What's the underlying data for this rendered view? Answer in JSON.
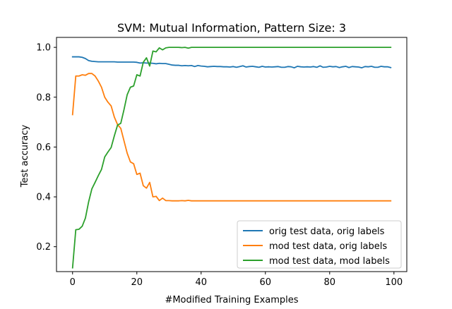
{
  "chart_data": {
    "type": "line",
    "title": "SVM: Mutual Information, Pattern Size: 3",
    "xlabel": "#Modified Training Examples",
    "ylabel": "Test accuracy",
    "xlim": [
      -5,
      104
    ],
    "ylim": [
      0.1,
      1.04
    ],
    "xticks": [
      0,
      20,
      40,
      60,
      80,
      100
    ],
    "yticks": [
      0.2,
      0.4,
      0.6,
      0.8,
      1.0
    ],
    "xtick_labels": [
      "0",
      "20",
      "40",
      "60",
      "80",
      "100"
    ],
    "ytick_labels": [
      "0.2",
      "0.4",
      "0.6",
      "0.8",
      "1.0"
    ],
    "grid": false,
    "legend_position": "lower-right",
    "series": [
      {
        "name": "orig test data, orig labels",
        "color": "#1f77b4",
        "points": [
          [
            0,
            0.962
          ],
          [
            1,
            0.962
          ],
          [
            2,
            0.962
          ],
          [
            3,
            0.96
          ],
          [
            4,
            0.955
          ],
          [
            5,
            0.947
          ],
          [
            6,
            0.944
          ],
          [
            7,
            0.943
          ],
          [
            8,
            0.942
          ],
          [
            9,
            0.942
          ],
          [
            10,
            0.942
          ],
          [
            11,
            0.942
          ],
          [
            12,
            0.942
          ],
          [
            13,
            0.942
          ],
          [
            14,
            0.941
          ],
          [
            15,
            0.941
          ],
          [
            16,
            0.941
          ],
          [
            17,
            0.941
          ],
          [
            18,
            0.941
          ],
          [
            19,
            0.941
          ],
          [
            20,
            0.94
          ],
          [
            21,
            0.937
          ],
          [
            22,
            0.938
          ],
          [
            23,
            0.937
          ],
          [
            24,
            0.937
          ],
          [
            25,
            0.936
          ],
          [
            26,
            0.934
          ],
          [
            27,
            0.936
          ],
          [
            28,
            0.935
          ],
          [
            29,
            0.935
          ],
          [
            30,
            0.932
          ],
          [
            31,
            0.929
          ],
          [
            32,
            0.928
          ],
          [
            33,
            0.928
          ],
          [
            34,
            0.926
          ],
          [
            35,
            0.927
          ],
          [
            36,
            0.926
          ],
          [
            37,
            0.927
          ],
          [
            38,
            0.923
          ],
          [
            39,
            0.927
          ],
          [
            40,
            0.925
          ],
          [
            41,
            0.924
          ],
          [
            42,
            0.922
          ],
          [
            43,
            0.923
          ],
          [
            44,
            0.924
          ],
          [
            45,
            0.923
          ],
          [
            46,
            0.923
          ],
          [
            47,
            0.922
          ],
          [
            48,
            0.922
          ],
          [
            49,
            0.921
          ],
          [
            50,
            0.923
          ],
          [
            51,
            0.92
          ],
          [
            52,
            0.923
          ],
          [
            53,
            0.926
          ],
          [
            54,
            0.921
          ],
          [
            55,
            0.923
          ],
          [
            56,
            0.924
          ],
          [
            57,
            0.922
          ],
          [
            58,
            0.92
          ],
          [
            59,
            0.924
          ],
          [
            60,
            0.921
          ],
          [
            61,
            0.922
          ],
          [
            62,
            0.921
          ],
          [
            63,
            0.922
          ],
          [
            64,
            0.923
          ],
          [
            65,
            0.92
          ],
          [
            66,
            0.92
          ],
          [
            67,
            0.923
          ],
          [
            68,
            0.922
          ],
          [
            69,
            0.918
          ],
          [
            70,
            0.924
          ],
          [
            71,
            0.922
          ],
          [
            72,
            0.921
          ],
          [
            73,
            0.922
          ],
          [
            74,
            0.921
          ],
          [
            75,
            0.923
          ],
          [
            76,
            0.92
          ],
          [
            77,
            0.926
          ],
          [
            78,
            0.92
          ],
          [
            79,
            0.921
          ],
          [
            80,
            0.924
          ],
          [
            81,
            0.922
          ],
          [
            82,
            0.923
          ],
          [
            83,
            0.919
          ],
          [
            84,
            0.922
          ],
          [
            85,
            0.924
          ],
          [
            86,
            0.919
          ],
          [
            87,
            0.923
          ],
          [
            88,
            0.922
          ],
          [
            89,
            0.921
          ],
          [
            90,
            0.918
          ],
          [
            91,
            0.923
          ],
          [
            92,
            0.922
          ],
          [
            93,
            0.924
          ],
          [
            94,
            0.92
          ],
          [
            95,
            0.92
          ],
          [
            96,
            0.924
          ],
          [
            97,
            0.922
          ],
          [
            98,
            0.922
          ],
          [
            99,
            0.919
          ]
        ]
      },
      {
        "name": "mod test data, orig labels",
        "color": "#ff7f0e",
        "points": [
          [
            0,
            0.73
          ],
          [
            1,
            0.885
          ],
          [
            2,
            0.885
          ],
          [
            3,
            0.89
          ],
          [
            4,
            0.888
          ],
          [
            5,
            0.895
          ],
          [
            6,
            0.895
          ],
          [
            7,
            0.885
          ],
          [
            8,
            0.865
          ],
          [
            9,
            0.84
          ],
          [
            10,
            0.8
          ],
          [
            11,
            0.78
          ],
          [
            12,
            0.765
          ],
          [
            13,
            0.72
          ],
          [
            14,
            0.69
          ],
          [
            15,
            0.675
          ],
          [
            16,
            0.625
          ],
          [
            17,
            0.575
          ],
          [
            18,
            0.54
          ],
          [
            19,
            0.533
          ],
          [
            20,
            0.49
          ],
          [
            21,
            0.495
          ],
          [
            22,
            0.445
          ],
          [
            23,
            0.435
          ],
          [
            24,
            0.458
          ],
          [
            25,
            0.4
          ],
          [
            26,
            0.402
          ],
          [
            27,
            0.385
          ],
          [
            28,
            0.395
          ],
          [
            29,
            0.385
          ],
          [
            30,
            0.385
          ],
          [
            31,
            0.384
          ],
          [
            32,
            0.384
          ],
          [
            33,
            0.384
          ],
          [
            34,
            0.385
          ],
          [
            35,
            0.384
          ],
          [
            36,
            0.386
          ],
          [
            37,
            0.384
          ],
          [
            38,
            0.384
          ],
          [
            39,
            0.384
          ],
          [
            40,
            0.384
          ],
          [
            45,
            0.384
          ],
          [
            50,
            0.384
          ],
          [
            55,
            0.384
          ],
          [
            60,
            0.384
          ],
          [
            65,
            0.384
          ],
          [
            70,
            0.384
          ],
          [
            75,
            0.384
          ],
          [
            80,
            0.384
          ],
          [
            85,
            0.384
          ],
          [
            90,
            0.384
          ],
          [
            95,
            0.384
          ],
          [
            99,
            0.384
          ]
        ]
      },
      {
        "name": "mod test data, mod labels",
        "color": "#2ca02c",
        "points": [
          [
            0,
            0.115
          ],
          [
            1,
            0.268
          ],
          [
            2,
            0.27
          ],
          [
            3,
            0.282
          ],
          [
            4,
            0.315
          ],
          [
            5,
            0.38
          ],
          [
            6,
            0.432
          ],
          [
            7,
            0.458
          ],
          [
            8,
            0.485
          ],
          [
            9,
            0.51
          ],
          [
            10,
            0.56
          ],
          [
            11,
            0.58
          ],
          [
            12,
            0.598
          ],
          [
            13,
            0.645
          ],
          [
            14,
            0.688
          ],
          [
            15,
            0.695
          ],
          [
            16,
            0.75
          ],
          [
            17,
            0.81
          ],
          [
            18,
            0.84
          ],
          [
            19,
            0.845
          ],
          [
            20,
            0.89
          ],
          [
            21,
            0.885
          ],
          [
            22,
            0.94
          ],
          [
            23,
            0.958
          ],
          [
            24,
            0.925
          ],
          [
            25,
            0.985
          ],
          [
            26,
            0.982
          ],
          [
            27,
            0.998
          ],
          [
            28,
            0.99
          ],
          [
            29,
            0.998
          ],
          [
            30,
            1.0
          ],
          [
            31,
            1.0
          ],
          [
            32,
            1.0
          ],
          [
            33,
            1.0
          ],
          [
            34,
            0.999
          ],
          [
            35,
            1.0
          ],
          [
            36,
            0.997
          ],
          [
            37,
            1.0
          ],
          [
            38,
            1.0
          ],
          [
            39,
            1.0
          ],
          [
            40,
            1.0
          ],
          [
            45,
            1.0
          ],
          [
            50,
            1.0
          ],
          [
            55,
            1.0
          ],
          [
            60,
            1.0
          ],
          [
            65,
            1.0
          ],
          [
            70,
            1.0
          ],
          [
            75,
            1.0
          ],
          [
            80,
            1.0
          ],
          [
            85,
            1.0
          ],
          [
            90,
            1.0
          ],
          [
            95,
            1.0
          ],
          [
            99,
            1.0
          ]
        ]
      }
    ]
  }
}
